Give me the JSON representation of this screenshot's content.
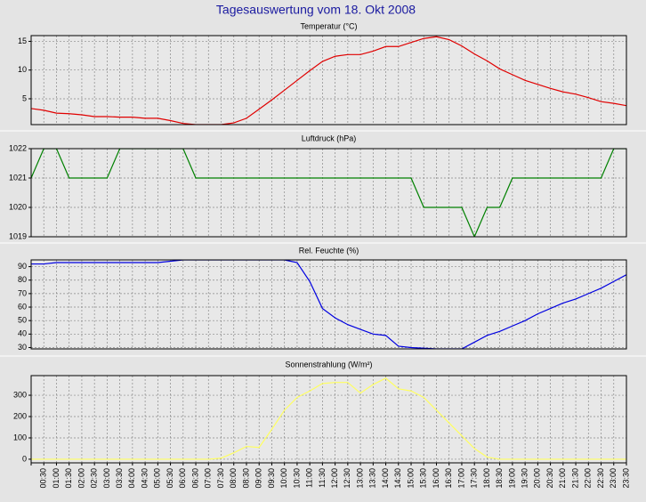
{
  "title": "Tagesauswertung vom 18. Okt 2008",
  "categories": [
    null,
    "00:30",
    "01:00",
    "01:30",
    "02:00",
    "02:30",
    "03:00",
    "03:30",
    "04:00",
    "04:30",
    "05:00",
    "05:30",
    "06:00",
    "06:30",
    "07:00",
    "07:30",
    "08:00",
    "08:30",
    "09:00",
    "09:30",
    "10:00",
    "10:30",
    "11:00",
    "11:30",
    "12:00",
    "12:30",
    "13:00",
    "13:30",
    "14:00",
    "14:30",
    "15:00",
    "15:30",
    "16:00",
    "16:30",
    "17:00",
    "17:30",
    "18:00",
    "18:30",
    "19:00",
    "19:30",
    "20:00",
    "20:30",
    "21:00",
    "21:30",
    "22:00",
    "22:30",
    "23:00",
    "23:30"
  ],
  "chart_data": [
    {
      "type": "line",
      "title": "Temperatur (°C)",
      "color": "#e00000",
      "ylim": [
        0.5,
        16
      ],
      "yticks": [
        5,
        10,
        15
      ],
      "grid": true,
      "values": [
        3.3,
        3.0,
        2.5,
        2.4,
        2.2,
        1.9,
        1.9,
        1.8,
        1.8,
        1.6,
        1.6,
        1.2,
        0.7,
        0.5,
        0.5,
        0.5,
        0.8,
        1.6,
        3.2,
        4.8,
        6.5,
        8.2,
        9.9,
        11.5,
        12.4,
        12.7,
        12.7,
        13.3,
        14.1,
        14.1,
        14.8,
        15.5,
        15.8,
        15.3,
        14.2,
        12.8,
        11.6,
        10.2,
        9.2,
        8.2,
        7.5,
        6.8,
        6.2,
        5.8,
        5.2,
        4.5,
        4.2,
        3.8
      ]
    },
    {
      "type": "line",
      "title": "Luftdruck (hPa)",
      "color": "#008000",
      "ylim": [
        1019,
        1022
      ],
      "yticks": [
        1019,
        1020,
        1021,
        1022
      ],
      "grid": true,
      "values": [
        1021,
        1022,
        1022,
        1021,
        1021,
        1021,
        1021,
        1022,
        1022,
        1022,
        1022,
        1022,
        1022,
        1021,
        1021,
        1021,
        1021,
        1021,
        1021,
        1021,
        1021,
        1021,
        1021,
        1021,
        1021,
        1021,
        1021,
        1021,
        1021,
        1021,
        1021,
        1020,
        1020,
        1020,
        1020,
        1019,
        1020,
        1020,
        1021,
        1021,
        1021,
        1021,
        1021,
        1021,
        1021,
        1021,
        1022,
        1022
      ]
    },
    {
      "type": "line",
      "title": "Rel. Feuchte (%)",
      "color": "#0000e0",
      "ylim": [
        29,
        95
      ],
      "yticks": [
        30,
        40,
        50,
        60,
        70,
        80,
        90
      ],
      "grid": true,
      "values": [
        92,
        92,
        93,
        93,
        93,
        93,
        93,
        93,
        93,
        93,
        93,
        94,
        95,
        95,
        95,
        95,
        95,
        95,
        95,
        95,
        95,
        93,
        79,
        59,
        52,
        47,
        43.5,
        40,
        39,
        31,
        30,
        29.5,
        29,
        29,
        29,
        34,
        39,
        42,
        46,
        50,
        55,
        59,
        63,
        66,
        70,
        74,
        79,
        84
      ]
    },
    {
      "type": "line",
      "title": "Sonnenstrahlung (W/m²)",
      "color": "#ffff60",
      "ylim": [
        -17,
        392
      ],
      "yticks": [
        0,
        100,
        200,
        300
      ],
      "grid": true,
      "xlabels": true,
      "values": [
        0,
        0,
        0,
        0,
        0,
        0,
        0,
        0,
        0,
        0,
        0,
        0,
        0,
        0,
        0,
        5,
        30,
        60,
        55,
        140,
        230,
        290,
        320,
        355,
        360,
        360,
        310,
        350,
        380,
        330,
        320,
        290,
        230,
        170,
        110,
        50,
        10,
        0,
        0,
        0,
        0,
        0,
        0,
        0,
        0,
        0,
        0,
        0
      ]
    }
  ]
}
